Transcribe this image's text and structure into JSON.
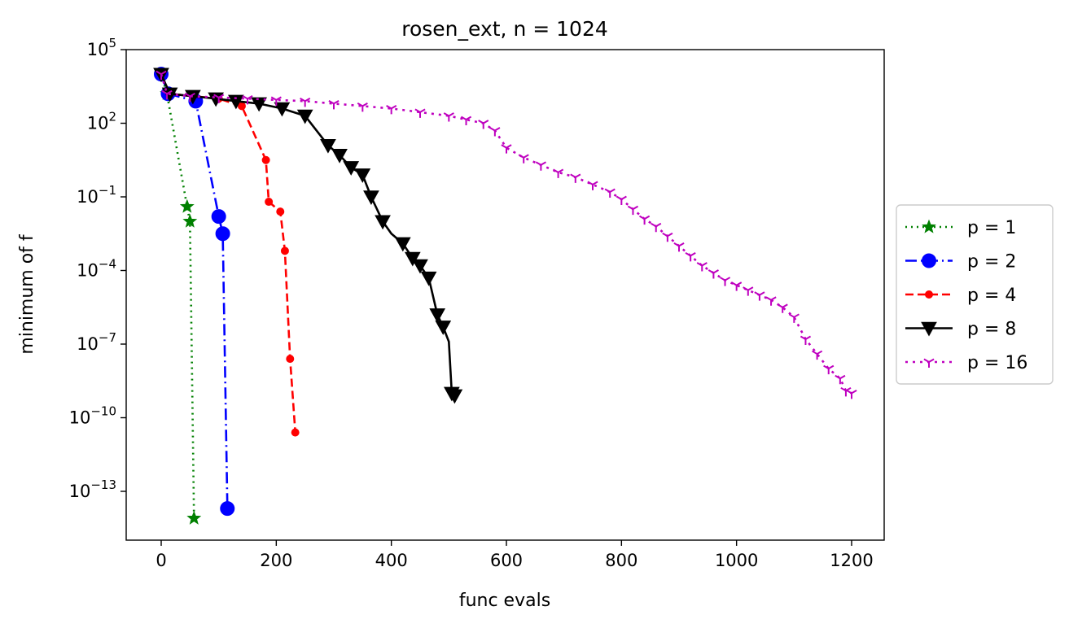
{
  "chart_data": {
    "type": "line",
    "title": "rosen_ext, n = 1024",
    "xlabel": "func evals",
    "ylabel": "minimum of f",
    "xlim": [
      -60,
      1260
    ],
    "ylim_log10": [
      -15.0,
      5
    ],
    "yscale": "log",
    "xticks": [
      0,
      200,
      400,
      600,
      800,
      1000,
      1200
    ],
    "xtick_labels": [
      "0",
      "200",
      "400",
      "600",
      "800",
      "1000",
      "1200"
    ],
    "yticks_log10": [
      5,
      2,
      -1,
      -4,
      -7,
      -10,
      -13
    ],
    "ytick_labels": [
      "10",
      "10",
      "10",
      "10",
      "10",
      "10",
      "10"
    ],
    "ytick_exponents": [
      "5",
      "2",
      "−1",
      "−4",
      "−7",
      "−10",
      "−13"
    ],
    "grid": false,
    "legend_position": "right",
    "series": [
      {
        "name": "p = 1",
        "color": "#008000",
        "dash": "2,5",
        "marker": "star",
        "x": [
          0,
          10,
          45,
          50,
          57
        ],
        "log10y": [
          4.0,
          3.2,
          -1.4,
          -2.0,
          -14.1
        ]
      },
      {
        "name": "p = 2",
        "color": "#0000ff",
        "dash": "14,5,2,5",
        "marker": "circle",
        "x": [
          0,
          12,
          60,
          100,
          107,
          115
        ],
        "log10y": [
          4.0,
          3.2,
          2.9,
          -1.8,
          -2.5,
          -13.7
        ]
      },
      {
        "name": "p = 4",
        "color": "#ff0000",
        "dash": "10,5",
        "marker": "point",
        "x": [
          0,
          15,
          100,
          140,
          182,
          187,
          207,
          215,
          224,
          233
        ],
        "log10y": [
          4.0,
          3.2,
          3.0,
          2.7,
          0.5,
          -1.2,
          -1.6,
          -3.2,
          -7.6,
          -10.6
        ]
      },
      {
        "name": "p = 8",
        "color": "#000000",
        "dash": "",
        "marker": "triangle_down",
        "x": [
          0,
          15,
          55,
          95,
          130,
          170,
          210,
          250,
          290,
          310,
          330,
          350,
          365,
          385,
          400,
          420,
          437,
          450,
          465,
          480,
          490,
          500,
          505,
          510
        ],
        "log10y": [
          4.0,
          3.2,
          3.1,
          3.0,
          2.9,
          2.8,
          2.6,
          2.3,
          1.1,
          0.7,
          0.2,
          -0.1,
          -1.0,
          -2.0,
          -2.5,
          -2.9,
          -3.5,
          -3.8,
          -4.3,
          -5.8,
          -6.3,
          -6.9,
          -9.0,
          -9.1
        ],
        "markers_x": [
          0,
          15,
          55,
          95,
          130,
          170,
          210,
          250,
          290,
          310,
          330,
          350,
          365,
          385,
          420,
          437,
          450,
          465,
          480,
          490,
          505,
          510
        ],
        "markers_log10y": [
          4.0,
          3.2,
          3.1,
          3.0,
          2.9,
          2.8,
          2.6,
          2.3,
          1.1,
          0.7,
          0.2,
          -0.1,
          -1.0,
          -2.0,
          -2.9,
          -3.5,
          -3.8,
          -4.3,
          -5.8,
          -6.3,
          -9.0,
          -9.1
        ]
      },
      {
        "name": "p = 16",
        "color": "#bf00bf",
        "dash": "3,6",
        "marker": "tri_down",
        "x": [
          0,
          10,
          50,
          100,
          150,
          200,
          250,
          300,
          350,
          400,
          450,
          500,
          530,
          560,
          580,
          600,
          630,
          660,
          690,
          720,
          750,
          780,
          800,
          820,
          840,
          860,
          880,
          900,
          920,
          940,
          960,
          980,
          1000,
          1020,
          1040,
          1060,
          1080,
          1100,
          1120,
          1140,
          1160,
          1180,
          1190,
          1200
        ],
        "log10y": [
          4.0,
          3.2,
          3.1,
          3.05,
          3.0,
          2.95,
          2.9,
          2.8,
          2.7,
          2.6,
          2.45,
          2.3,
          2.15,
          2.0,
          1.7,
          1.0,
          0.6,
          0.3,
          0.0,
          -0.2,
          -0.5,
          -0.8,
          -1.1,
          -1.5,
          -1.9,
          -2.2,
          -2.6,
          -3.0,
          -3.4,
          -3.8,
          -4.1,
          -4.4,
          -4.6,
          -4.8,
          -5.0,
          -5.2,
          -5.5,
          -5.9,
          -6.8,
          -7.4,
          -8.0,
          -8.4,
          -8.9,
          -9.0
        ]
      }
    ]
  }
}
